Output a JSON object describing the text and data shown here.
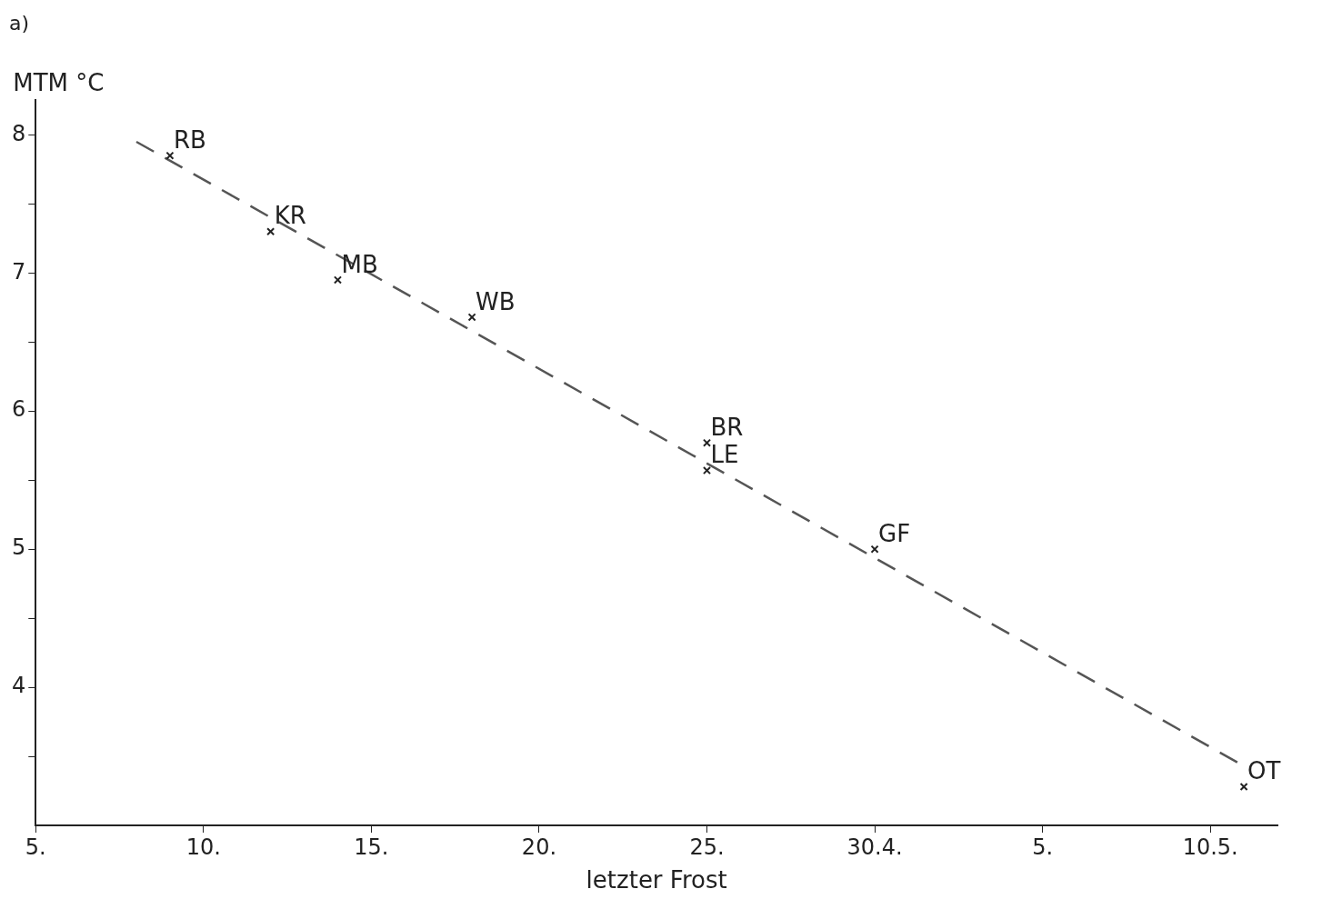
{
  "chart_data": {
    "type": "scatter",
    "title": "a)",
    "xlabel": "letzter Frost",
    "ylabel": "MTM °C",
    "series": [
      {
        "type": "scatter",
        "color": "#222222",
        "marker": "cross",
        "x": [
          "--04-09",
          "--04-12",
          "--04-14",
          "--04-18",
          "--04-25",
          "--04-25",
          "--04-30",
          "--05-11"
        ],
        "values": [
          7.85,
          7.3,
          6.95,
          6.68,
          5.77,
          5.57,
          5.0,
          3.28
        ]
      },
      {
        "type": "line",
        "color": "#555555",
        "line_style": "dashed",
        "x": [
          "--04-08",
          "--05-11"
        ],
        "values": [
          7.95,
          3.43
        ]
      }
    ],
    "annotations": [
      {
        "text": "RB",
        "x": "--04-09",
        "y": 7.85
      },
      {
        "text": "KR",
        "x": "--04-12",
        "y": 7.3
      },
      {
        "text": "MB",
        "x": "--04-14",
        "y": 6.95
      },
      {
        "text": "WB",
        "x": "--04-18",
        "y": 6.68
      },
      {
        "text": "BR",
        "x": "--04-25",
        "y": 5.77
      },
      {
        "text": "LE",
        "x": "--04-25",
        "y": 5.57
      },
      {
        "text": "GF",
        "x": "--04-30",
        "y": 5.0
      },
      {
        "text": "OT",
        "x": "--05-11",
        "y": 3.28
      }
    ],
    "xlim": [
      "--04-05",
      "--05-12"
    ],
    "xticks": [
      {
        "value": "--04-05",
        "label": "5."
      },
      {
        "value": "--04-10",
        "label": "10."
      },
      {
        "value": "--04-15",
        "label": "15."
      },
      {
        "value": "--04-20",
        "label": "20."
      },
      {
        "value": "--04-25",
        "label": "25."
      },
      {
        "value": "--04-30",
        "label": "30.4."
      },
      {
        "value": "--05-05",
        "label": "5."
      },
      {
        "value": "--05-10",
        "label": "10.5."
      }
    ],
    "ylim": [
      3,
      8.25
    ],
    "yticks": [
      {
        "value": 3.5,
        "label": null
      },
      4,
      {
        "value": 4.5,
        "label": null
      },
      5,
      {
        "value": 5.5,
        "label": null
      },
      6,
      {
        "value": 6.5,
        "label": null
      },
      7,
      {
        "value": 7.5,
        "label": null
      },
      8
    ],
    "grid": false,
    "legend": false
  }
}
